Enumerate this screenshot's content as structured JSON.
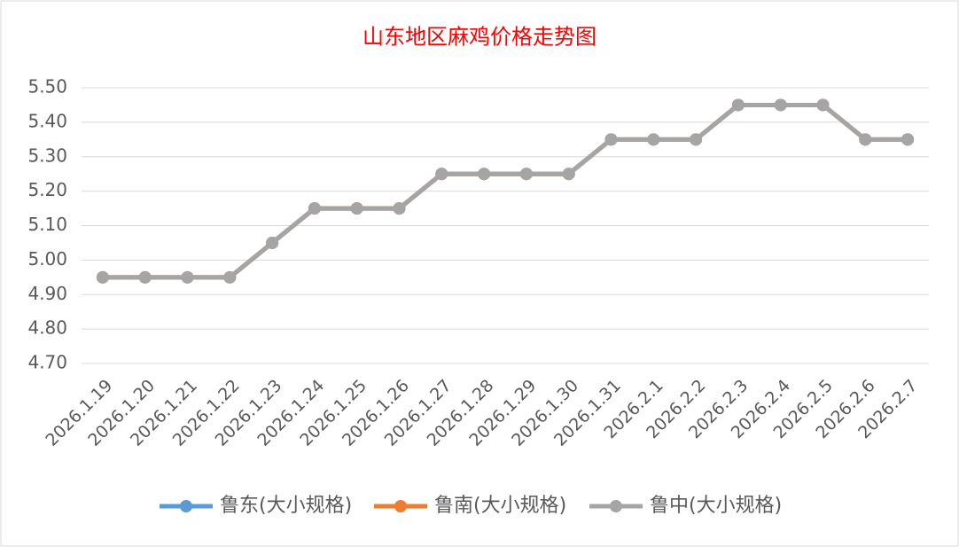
{
  "chart_data": {
    "type": "line",
    "title": "山东地区麻鸡价格走势图",
    "categories": [
      "2026.1.19",
      "2026.1.20",
      "2026.1.21",
      "2026.1.22",
      "2026.1.23",
      "2026.1.24",
      "2026.1.25",
      "2026.1.26",
      "2026.1.27",
      "2026.1.28",
      "2026.1.29",
      "2026.1.30",
      "2026.1.31",
      "2026.2.1",
      "2026.2.2",
      "2026.2.3",
      "2026.2.4",
      "2026.2.5",
      "2026.2.6",
      "2026.2.7"
    ],
    "series": [
      {
        "name": "鲁东(大小规格)",
        "color": "#5b9bd5",
        "values": [
          4.95,
          4.95,
          4.95,
          4.95,
          5.05,
          5.15,
          5.15,
          5.15,
          5.25,
          5.25,
          5.25,
          5.25,
          5.35,
          5.35,
          5.35,
          5.45,
          5.45,
          5.45,
          5.35,
          5.35
        ]
      },
      {
        "name": "鲁南(大小规格)",
        "color": "#ed7d31",
        "values": [
          4.95,
          4.95,
          4.95,
          4.95,
          5.05,
          5.15,
          5.15,
          5.15,
          5.25,
          5.25,
          5.25,
          5.25,
          5.35,
          5.35,
          5.35,
          5.45,
          5.45,
          5.45,
          5.35,
          5.35
        ]
      },
      {
        "name": "鲁中(大小规格)",
        "color": "#a5a5a5",
        "values": [
          4.95,
          4.95,
          4.95,
          4.95,
          5.05,
          5.15,
          5.15,
          5.15,
          5.25,
          5.25,
          5.25,
          5.25,
          5.35,
          5.35,
          5.35,
          5.45,
          5.45,
          5.45,
          5.35,
          5.35
        ]
      }
    ],
    "ylim": [
      4.7,
      5.5
    ],
    "yticks": [
      {
        "value": 4.7,
        "label": "4.70"
      },
      {
        "value": 4.8,
        "label": "4.80"
      },
      {
        "value": 4.9,
        "label": "4.90"
      },
      {
        "value": 5.0,
        "label": "5.00"
      },
      {
        "value": 5.1,
        "label": "5.10"
      },
      {
        "value": 5.2,
        "label": "5.20"
      },
      {
        "value": 5.3,
        "label": "5.30"
      },
      {
        "value": 5.4,
        "label": "5.40"
      },
      {
        "value": 5.5,
        "label": "5.50"
      }
    ],
    "grid": true,
    "legend": "bottom"
  }
}
